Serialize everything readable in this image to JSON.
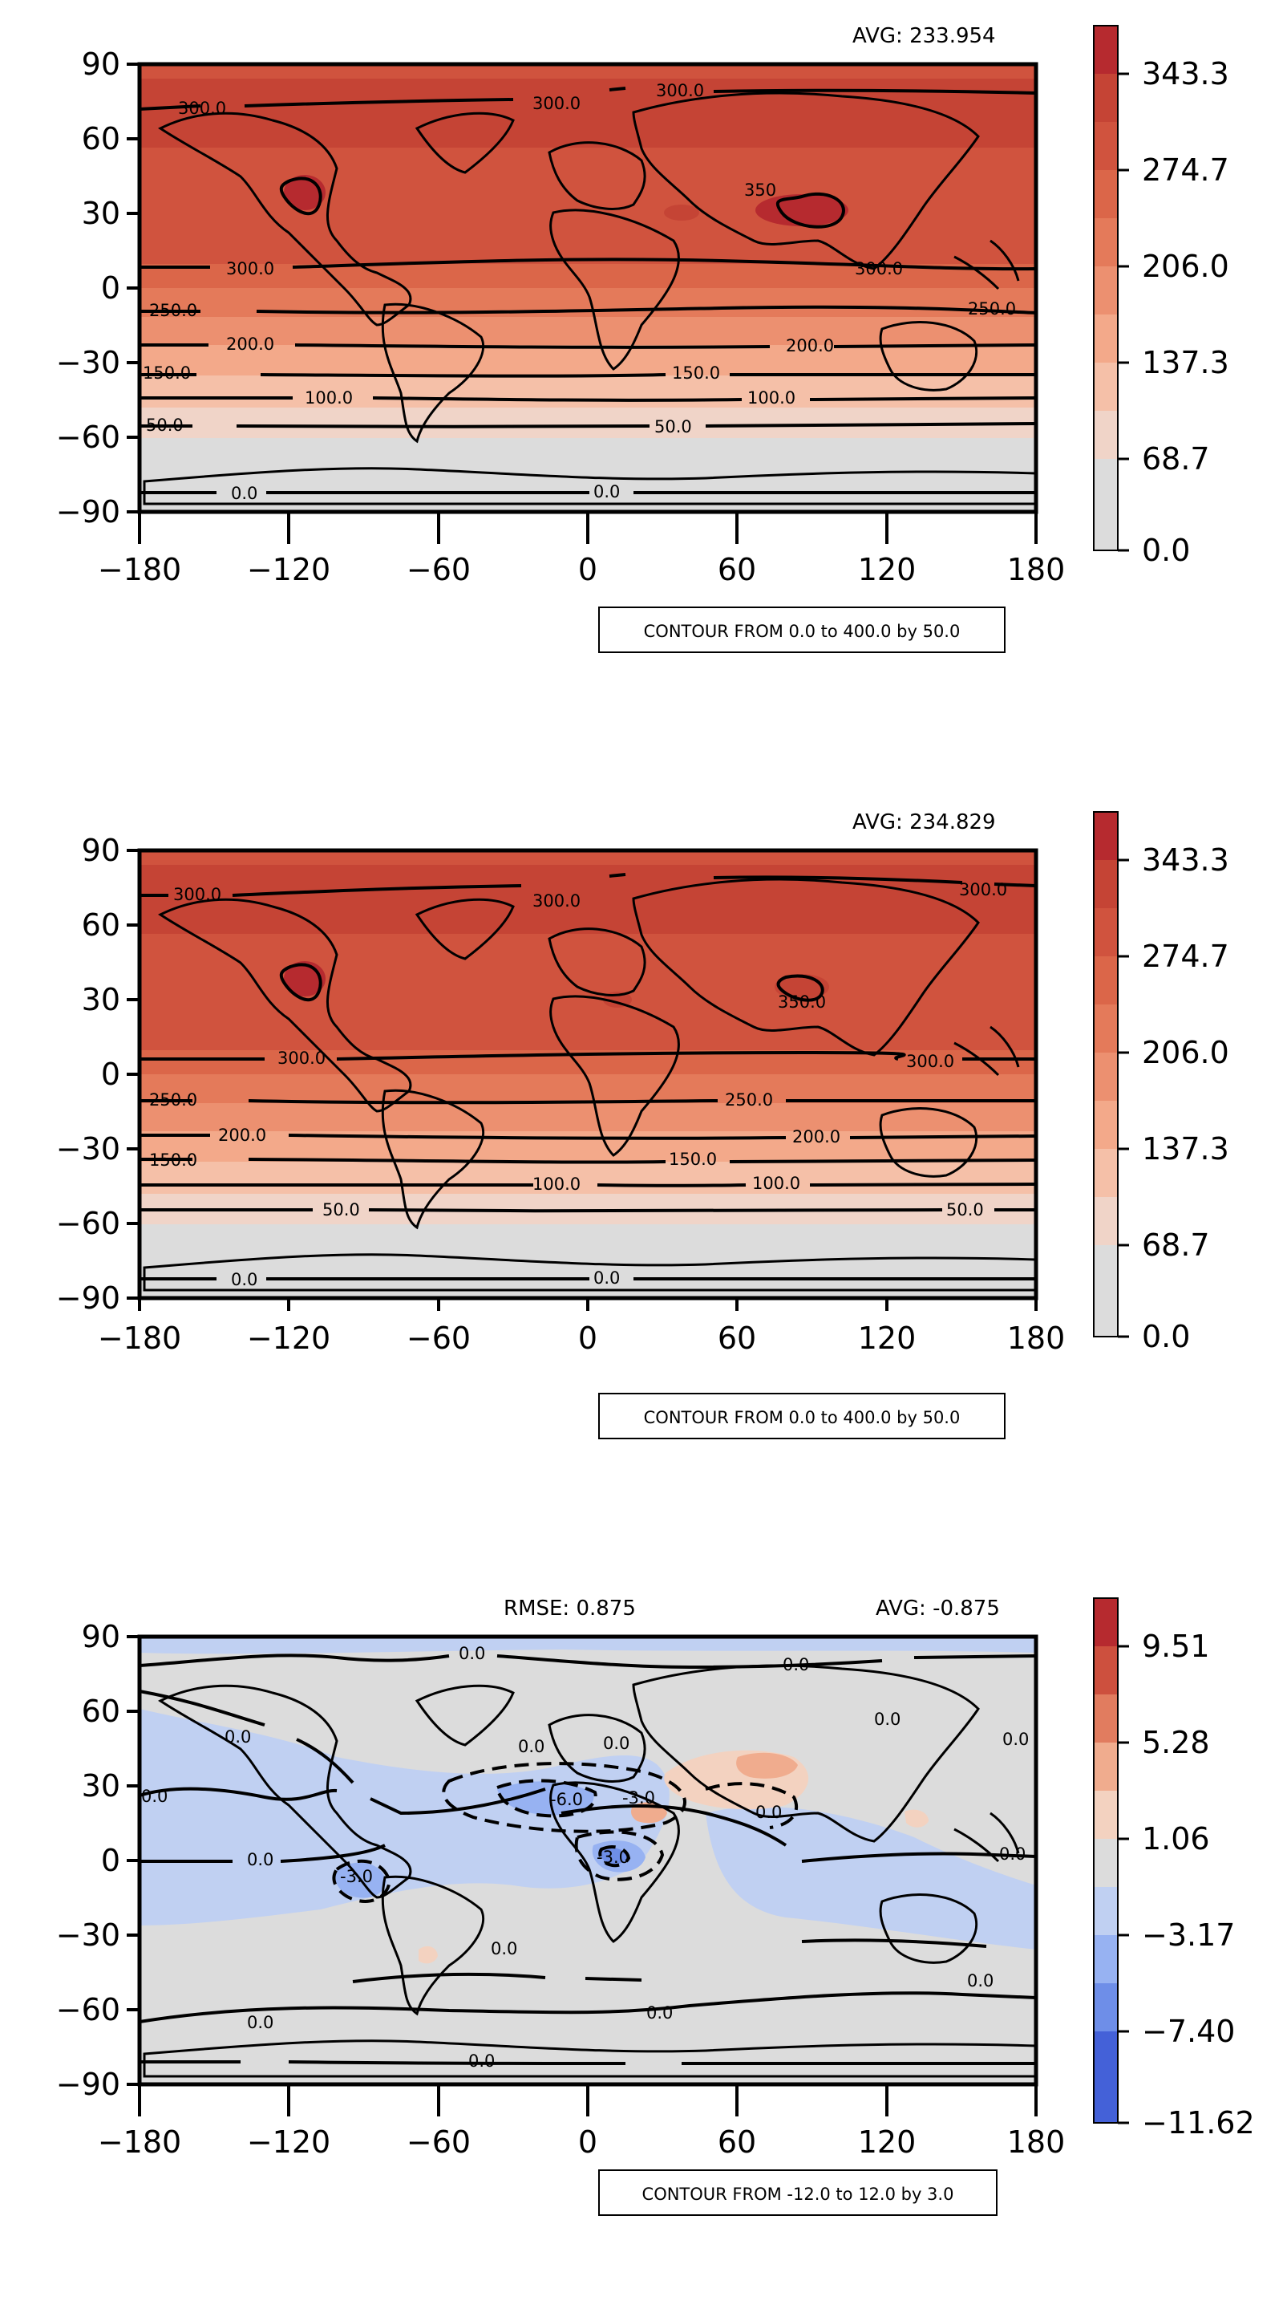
{
  "colors": {
    "warm_scale": [
      "#dcdcdc",
      "#f0d4c8",
      "#f5c0a8",
      "#f3a98a",
      "#ec9070",
      "#e47a5a",
      "#db6649",
      "#d0533e",
      "#c54435",
      "#b62a2f"
    ],
    "diff_scale": [
      "#4461d8",
      "#6e8ee8",
      "#97b2f2",
      "#c0d0f2",
      "#dcdcdc",
      "#f3d2c0",
      "#f0ac8e",
      "#e17c5f",
      "#cd503e",
      "#b62a2f"
    ],
    "neutral": "#dcdcdc",
    "line": "#000000"
  },
  "axes": {
    "x_ticks": [
      "−180",
      "−120",
      "−60",
      "0",
      "60",
      "120",
      "180"
    ],
    "y_ticks": [
      "90",
      "60",
      "30",
      "0",
      "−30",
      "−60",
      "−90"
    ]
  },
  "panels": [
    {
      "stat_left": "",
      "stat_right": "AVG: 233.954",
      "colorbar_ticks": [
        "343.3",
        "274.7",
        "206.0",
        "137.3",
        "68.7",
        "0.0"
      ],
      "note": "CONTOUR FROM 0.0 to 400.0 by 50.0",
      "contour_labels": [
        "300.0",
        "300.0",
        "300.0",
        "350",
        "300.0",
        "250.0",
        "300.0",
        "250.0",
        "200.0",
        "200.0",
        "150.0",
        "150.0",
        "100.0",
        "100.0",
        "50.0",
        "50.0",
        "0.0",
        "0.0"
      ]
    },
    {
      "stat_left": "",
      "stat_right": "AVG: 234.829",
      "colorbar_ticks": [
        "343.3",
        "274.7",
        "206.0",
        "137.3",
        "68.7",
        "0.0"
      ],
      "note": "CONTOUR FROM 0.0 to 400.0 by 50.0",
      "contour_labels": [
        "300.0",
        "300.0",
        "300.0",
        "350.0",
        "300.0",
        "300.0",
        "250.0",
        "250.0",
        "200.0",
        "200.0",
        "150.0",
        "150.0",
        "100.0",
        "100.0",
        "50.0",
        "50.0",
        "0.0",
        "0.0"
      ]
    },
    {
      "stat_left": "RMSE: 0.875",
      "stat_right": "AVG: -0.875",
      "colorbar_ticks": [
        "9.51",
        "5.28",
        "1.06",
        "−3.17",
        "−7.40",
        "−11.62"
      ],
      "note": "CONTOUR FROM -12.0 to 12.0 by 3.0",
      "contour_labels": [
        "0.0",
        "0.0",
        "0.0",
        "0.0",
        "0.0",
        "0.0",
        "0.0",
        "0.0",
        "0.0",
        "0.0",
        "0.0",
        "-3.0",
        "-6.0",
        "-3.0",
        "-3.0",
        "0.0",
        "0.0",
        "0.0",
        "0.0",
        "0.0"
      ]
    }
  ]
}
